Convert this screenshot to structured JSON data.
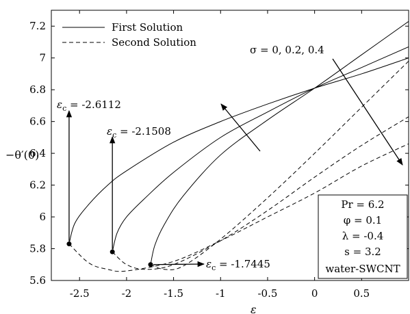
{
  "chart_data": {
    "type": "line",
    "xlabel": "ε",
    "ylabel": "−θ′(0)",
    "xlim": [
      -2.8,
      1.0
    ],
    "ylim": [
      5.6,
      7.3
    ],
    "xticks": [
      -2.5,
      -2,
      -1.5,
      -1,
      -0.5,
      0,
      0.5
    ],
    "xtick_labels": [
      "-2.5",
      "-2",
      "-1.5",
      "-1",
      "-0.5",
      "0",
      "0.5"
    ],
    "yticks": [
      5.6,
      5.8,
      6.0,
      6.2,
      6.4,
      6.6,
      6.8,
      7.0,
      7.2
    ],
    "ytick_labels": [
      "5.6",
      "5.8",
      "6",
      "6.2",
      "6.4",
      "6.6",
      "6.8",
      "7",
      "7.2"
    ],
    "legend": {
      "placement": "top-left",
      "entries": [
        {
          "label": "First Solution",
          "style": "solid"
        },
        {
          "label": "Second Solution",
          "style": "dashed"
        }
      ]
    },
    "series": [
      {
        "solution": "first",
        "style": "solid",
        "points": [
          [
            -2.6112,
            5.83
          ],
          [
            -2.55,
            5.96
          ],
          [
            -2.4,
            6.08
          ],
          [
            -2.2,
            6.2
          ],
          [
            -2.0,
            6.29
          ],
          [
            -1.5,
            6.47
          ],
          [
            -1.0,
            6.6
          ],
          [
            -0.5,
            6.71
          ],
          [
            0,
            6.81
          ],
          [
            0.5,
            6.9
          ],
          [
            1.0,
            7.0
          ]
        ]
      },
      {
        "solution": "second",
        "style": "dashed",
        "points": [
          [
            -2.6112,
            5.83
          ],
          [
            -2.4,
            5.71
          ],
          [
            -2.2,
            5.67
          ],
          [
            -2.0,
            5.66
          ],
          [
            -1.5,
            5.72
          ],
          [
            -1.0,
            5.85
          ],
          [
            -0.5,
            6.0
          ],
          [
            0,
            6.15
          ],
          [
            0.5,
            6.32
          ],
          [
            1.0,
            6.46
          ]
        ]
      },
      {
        "solution": "first",
        "style": "solid",
        "points": [
          [
            -2.1508,
            5.78
          ],
          [
            -2.1,
            5.9
          ],
          [
            -2.0,
            6.0
          ],
          [
            -1.8,
            6.12
          ],
          [
            -1.5,
            6.28
          ],
          [
            -1.0,
            6.5
          ],
          [
            -0.5,
            6.66
          ],
          [
            0,
            6.81
          ],
          [
            0.5,
            6.94
          ],
          [
            1.0,
            7.07
          ]
        ]
      },
      {
        "solution": "second",
        "style": "dashed",
        "points": [
          [
            -2.1508,
            5.78
          ],
          [
            -2.0,
            5.7
          ],
          [
            -1.8,
            5.67
          ],
          [
            -1.5,
            5.7
          ],
          [
            -1.0,
            5.85
          ],
          [
            -0.5,
            6.04
          ],
          [
            0,
            6.25
          ],
          [
            0.5,
            6.45
          ],
          [
            1.0,
            6.63
          ]
        ]
      },
      {
        "solution": "first",
        "style": "solid",
        "points": [
          [
            -1.7445,
            5.7
          ],
          [
            -1.7,
            5.82
          ],
          [
            -1.6,
            5.95
          ],
          [
            -1.4,
            6.13
          ],
          [
            -1.0,
            6.39
          ],
          [
            -0.5,
            6.61
          ],
          [
            0,
            6.81
          ],
          [
            0.5,
            7.02
          ],
          [
            1.0,
            7.23
          ]
        ]
      },
      {
        "solution": "second",
        "style": "dashed",
        "points": [
          [
            -1.7445,
            5.7
          ],
          [
            -1.6,
            5.67
          ],
          [
            -1.4,
            5.69
          ],
          [
            -1.0,
            5.86
          ],
          [
            -0.5,
            6.12
          ],
          [
            0,
            6.4
          ],
          [
            0.5,
            6.69
          ],
          [
            1.0,
            6.98
          ]
        ]
      }
    ],
    "critical_points": [
      {
        "x": -2.6112,
        "y": 5.83,
        "label": "ε_c = -2.6112"
      },
      {
        "x": -2.1508,
        "y": 5.78,
        "label": "ε_c = -2.1508"
      },
      {
        "x": -1.7445,
        "y": 5.7,
        "label": "ε_c = -1.7445"
      }
    ],
    "annotations": {
      "sigma": "σ = 0, 0.2, 0.4",
      "ec_prefix": "ε",
      "ec_sub": "c",
      "ec_1": " = -2.6112",
      "ec_2": " = -2.1508",
      "ec_3": " = -1.7445"
    },
    "params_box": {
      "placement": "bottom-right",
      "lines": [
        "Pr = 6.2",
        "φ = 0.1",
        "λ = -0.4",
        "s = 3.2",
        "water-SWCNT"
      ]
    }
  }
}
